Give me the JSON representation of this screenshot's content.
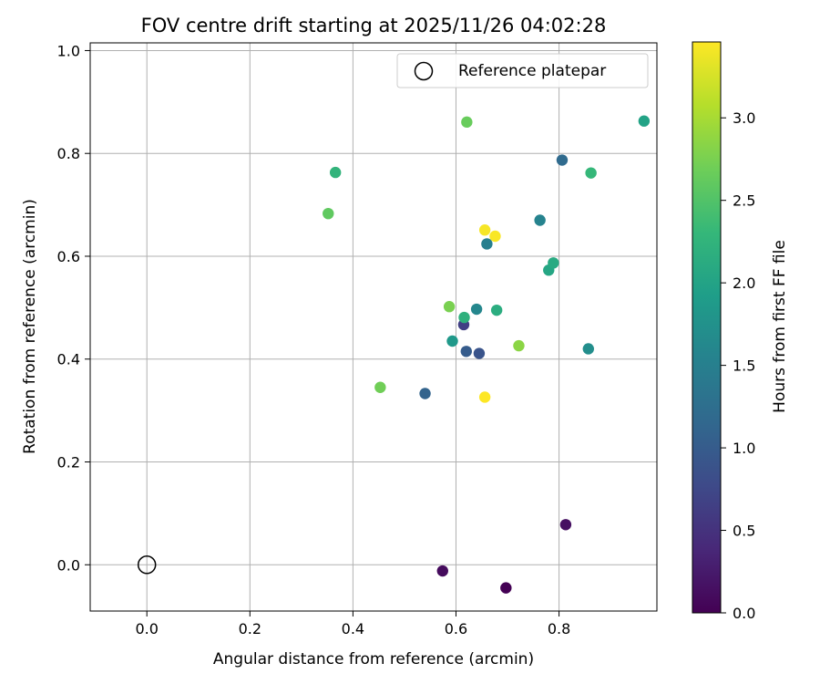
{
  "chart_data": {
    "type": "scatter",
    "title": "FOV centre drift starting at 2025/11/26 04:02:28",
    "xlabel": "Angular distance from reference (arcmin)",
    "ylabel": "Rotation from reference (arcmin)",
    "xlim": [
      -0.11,
      0.99
    ],
    "ylim": [
      -0.09,
      1.015
    ],
    "x_ticks": [
      0.0,
      0.2,
      0.4,
      0.6,
      0.8
    ],
    "x_tick_labels": [
      "0.0",
      "0.2",
      "0.4",
      "0.6",
      "0.8"
    ],
    "y_ticks": [
      0.0,
      0.2,
      0.4,
      0.6,
      0.8,
      1.0
    ],
    "y_tick_labels": [
      "0.0",
      "0.2",
      "0.4",
      "0.6",
      "0.8",
      "1.0"
    ],
    "grid": true,
    "colormap": "viridis",
    "colorbar": {
      "label": "Hours from first FF file",
      "range": [
        0.0,
        3.46
      ],
      "ticks": [
        0.0,
        0.5,
        1.0,
        1.5,
        2.0,
        2.5,
        3.0
      ],
      "tick_labels": [
        "0.0",
        "0.5",
        "1.0",
        "1.5",
        "2.0",
        "2.5",
        "3.0"
      ]
    },
    "reference_point": {
      "x": 0.0,
      "y": 0.0,
      "label": "Reference platepar"
    },
    "legend": {
      "location": "top-right",
      "entries": [
        "Reference platepar"
      ]
    },
    "points": [
      {
        "x": 0.697,
        "y": -0.045,
        "hours": 0.0
      },
      {
        "x": 0.574,
        "y": -0.012,
        "hours": 0.1
      },
      {
        "x": 0.813,
        "y": 0.078,
        "hours": 0.15
      },
      {
        "x": 0.615,
        "y": 0.467,
        "hours": 0.65
      },
      {
        "x": 0.645,
        "y": 0.411,
        "hours": 0.9
      },
      {
        "x": 0.62,
        "y": 0.415,
        "hours": 1.0
      },
      {
        "x": 0.54,
        "y": 0.333,
        "hours": 1.1
      },
      {
        "x": 0.806,
        "y": 0.787,
        "hours": 1.2
      },
      {
        "x": 0.66,
        "y": 0.624,
        "hours": 1.5
      },
      {
        "x": 0.763,
        "y": 0.67,
        "hours": 1.55
      },
      {
        "x": 0.64,
        "y": 0.497,
        "hours": 1.6
      },
      {
        "x": 0.857,
        "y": 0.42,
        "hours": 1.7
      },
      {
        "x": 0.593,
        "y": 0.435,
        "hours": 1.85
      },
      {
        "x": 0.965,
        "y": 0.863,
        "hours": 2.0
      },
      {
        "x": 0.78,
        "y": 0.573,
        "hours": 2.05
      },
      {
        "x": 0.789,
        "y": 0.587,
        "hours": 2.1
      },
      {
        "x": 0.679,
        "y": 0.495,
        "hours": 2.15
      },
      {
        "x": 0.616,
        "y": 0.481,
        "hours": 2.2
      },
      {
        "x": 0.366,
        "y": 0.763,
        "hours": 2.25
      },
      {
        "x": 0.862,
        "y": 0.762,
        "hours": 2.3
      },
      {
        "x": 0.352,
        "y": 0.683,
        "hours": 2.6
      },
      {
        "x": 0.621,
        "y": 0.861,
        "hours": 2.65
      },
      {
        "x": 0.453,
        "y": 0.345,
        "hours": 2.7
      },
      {
        "x": 0.587,
        "y": 0.502,
        "hours": 2.75
      },
      {
        "x": 0.722,
        "y": 0.426,
        "hours": 2.85
      },
      {
        "x": 0.656,
        "y": 0.651,
        "hours": 3.42
      },
      {
        "x": 0.676,
        "y": 0.639,
        "hours": 3.44
      },
      {
        "x": 0.656,
        "y": 0.326,
        "hours": 3.46
      }
    ]
  }
}
